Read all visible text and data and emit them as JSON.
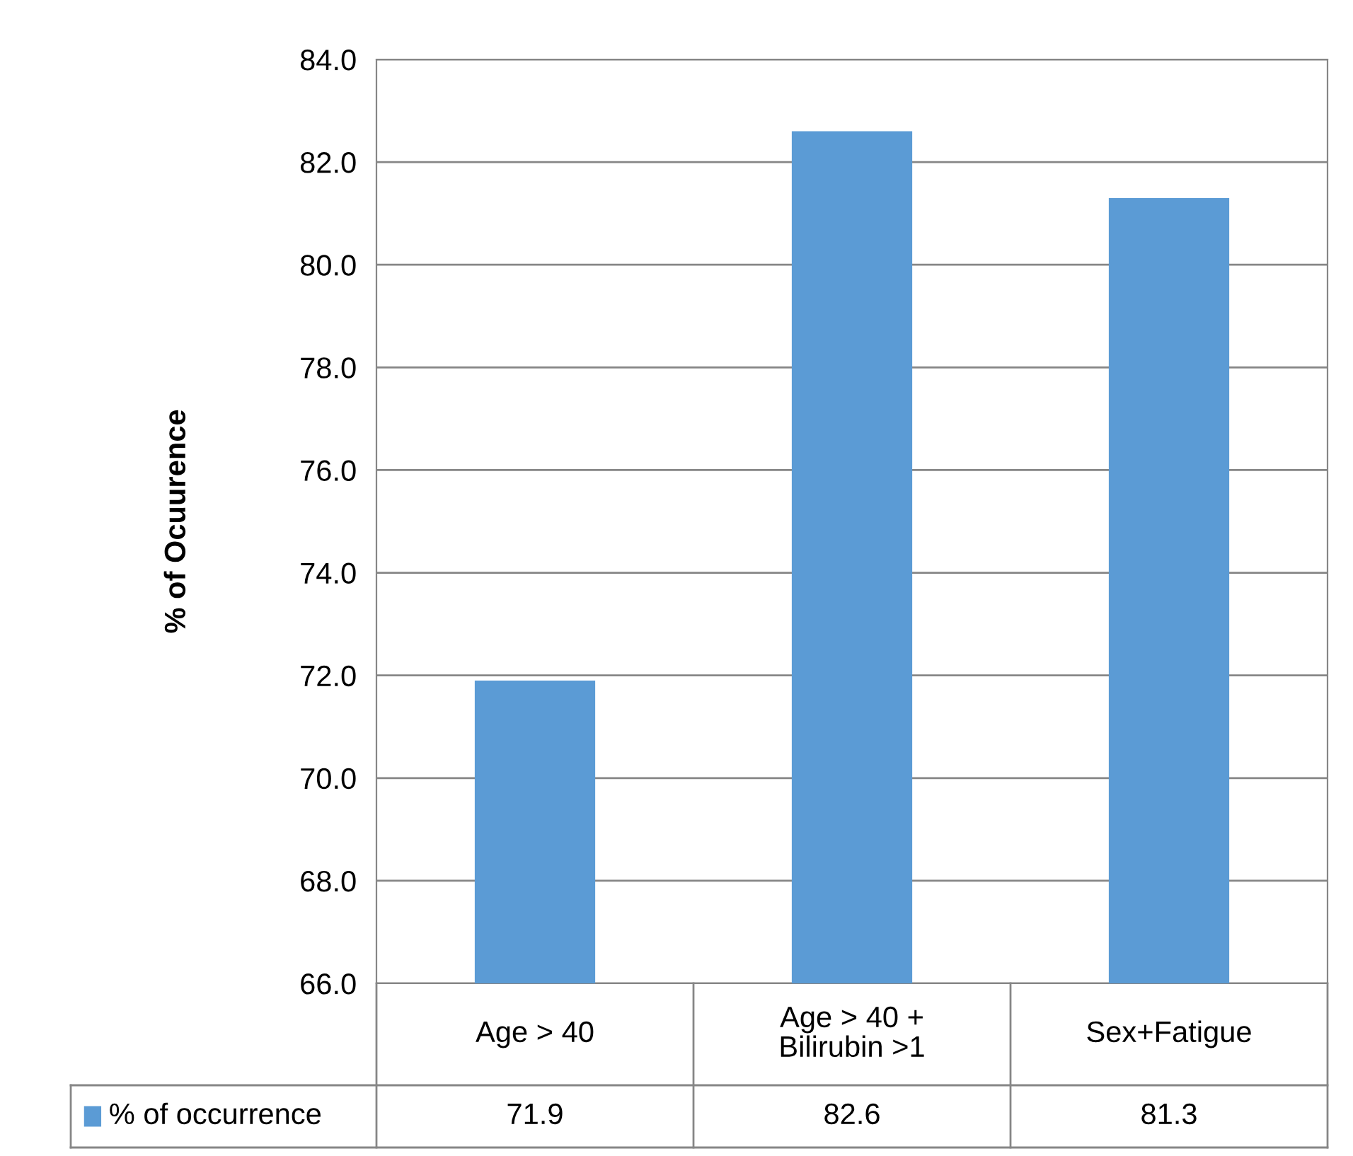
{
  "chart_data": {
    "type": "bar",
    "ylabel": "% of Ocuurence",
    "categories": [
      "Age > 40",
      "Age > 40 +\nBilirubin >1",
      "Sex+Fatigue"
    ],
    "series": [
      {
        "name": "% of occurrence",
        "color": "#5b9bd5",
        "values": [
          71.9,
          82.6,
          81.3
        ]
      }
    ],
    "ylim": [
      66,
      84
    ],
    "yticks": [
      {
        "value": 66,
        "label": "66.0"
      },
      {
        "value": 68,
        "label": "68.0"
      },
      {
        "value": 70,
        "label": "70.0"
      },
      {
        "value": 72,
        "label": "72.0"
      },
      {
        "value": 74,
        "label": "74.0"
      },
      {
        "value": 76,
        "label": "76.0"
      },
      {
        "value": 78,
        "label": "78.0"
      },
      {
        "value": 80,
        "label": "80.0"
      },
      {
        "value": 82,
        "label": "82.0"
      },
      {
        "value": 84,
        "label": "84.0"
      }
    ],
    "grid": "y",
    "legend": "bottom",
    "data_labels": true
  }
}
